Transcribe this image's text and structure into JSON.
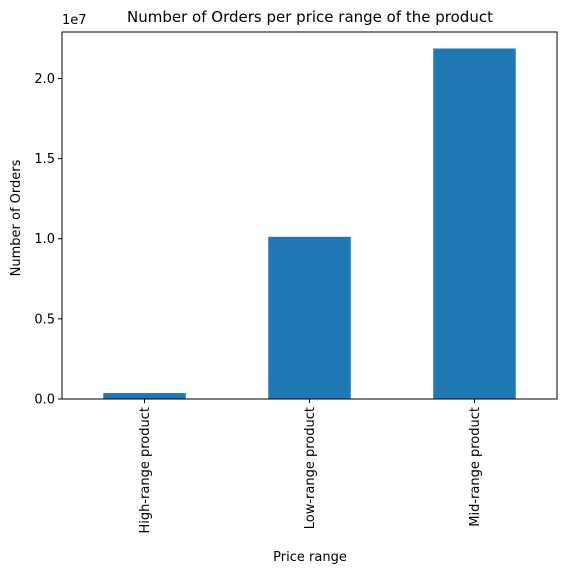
{
  "chart_data": {
    "type": "bar",
    "title": "Number of Orders per price range of the product",
    "xlabel": "Price range",
    "ylabel": "Number of Orders",
    "y_scale_label": "1e7",
    "categories": [
      "High-range product",
      "Low-range product",
      "Mid-range product"
    ],
    "values": [
      370000,
      10120000,
      21870000
    ],
    "ylim": [
      0,
      22900000
    ],
    "yticks": [
      0,
      5000000,
      10000000,
      15000000,
      20000000
    ],
    "ytick_labels": [
      "0.0",
      "0.5",
      "1.0",
      "1.5",
      "2.0"
    ],
    "bar_color": "#1f77b4",
    "grid": false,
    "legend": "none"
  }
}
